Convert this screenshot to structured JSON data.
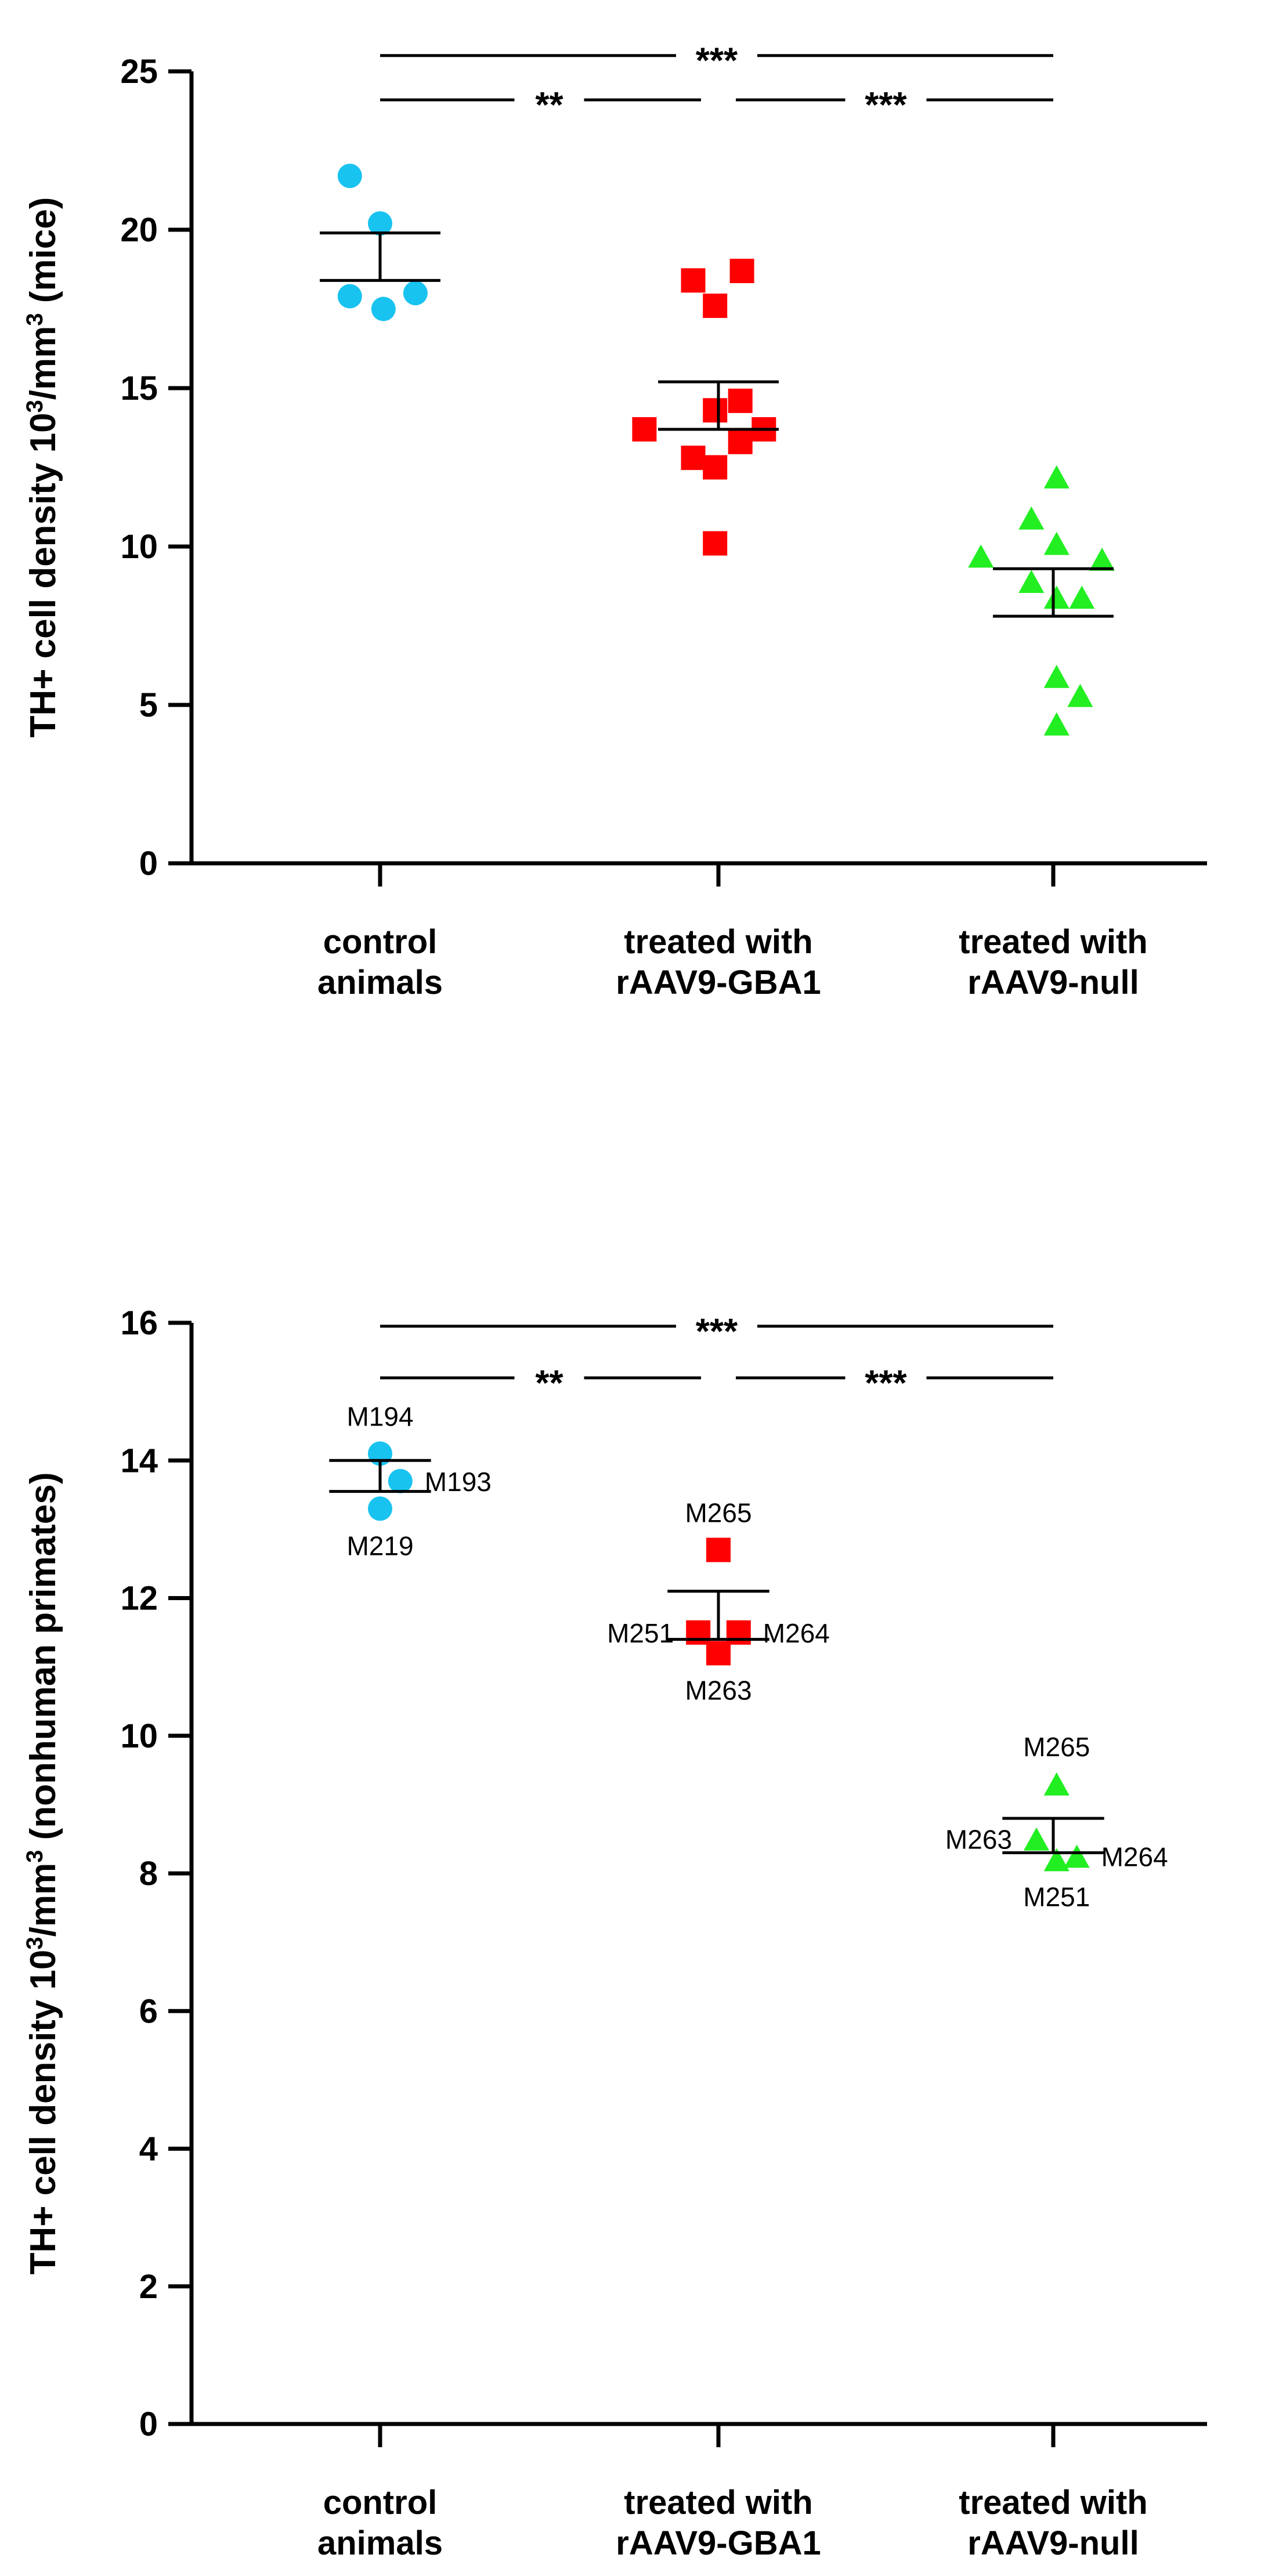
{
  "chart_data": [
    {
      "type": "scatter",
      "title": "",
      "ylabel_prefix": "TH+ cell density 10",
      "ylabel_sup1": "3",
      "ylabel_mid": "/mm",
      "ylabel_sup2": "3",
      "ylabel_suffix": " (mice)",
      "ylim": [
        0,
        25
      ],
      "yticks": [
        0,
        5,
        10,
        15,
        20,
        25
      ],
      "categories": [
        {
          "line1": "control",
          "line2": "animals"
        },
        {
          "line1": "treated with",
          "line2": "rAAV9-GBA1"
        },
        {
          "line1": "treated with",
          "line2": "rAAV9-null"
        }
      ],
      "series": [
        {
          "name": "control animals",
          "marker": "circle",
          "color": "#19c3f0",
          "points": [
            {
              "dx": -0.18,
              "y": 21.7
            },
            {
              "dx": 0.0,
              "y": 20.2
            },
            {
              "dx": -0.18,
              "y": 17.9
            },
            {
              "dx": 0.02,
              "y": 17.5
            },
            {
              "dx": 0.21,
              "y": 18.0
            }
          ],
          "mean": 19.1,
          "sem_upper": 19.9,
          "sem_lower": 18.4
        },
        {
          "name": "treated with rAAV9-GBA1",
          "marker": "square",
          "color": "#ff0000",
          "points": [
            {
              "dx": -0.15,
              "y": 18.4
            },
            {
              "dx": 0.14,
              "y": 18.7
            },
            {
              "dx": -0.02,
              "y": 17.6
            },
            {
              "dx": -0.44,
              "y": 13.7
            },
            {
              "dx": -0.02,
              "y": 14.3
            },
            {
              "dx": 0.13,
              "y": 14.6
            },
            {
              "dx": -0.15,
              "y": 12.8
            },
            {
              "dx": 0.13,
              "y": 13.3
            },
            {
              "dx": 0.27,
              "y": 13.7
            },
            {
              "dx": -0.02,
              "y": 12.5
            },
            {
              "dx": -0.02,
              "y": 10.1
            }
          ],
          "mean": 14.5,
          "sem_upper": 15.2,
          "sem_lower": 13.7
        },
        {
          "name": "treated with rAAV9-null",
          "marker": "triangle",
          "color": "#22ee22",
          "points": [
            {
              "dx": 0.02,
              "y": 12.2
            },
            {
              "dx": -0.13,
              "y": 10.9
            },
            {
              "dx": 0.02,
              "y": 10.1
            },
            {
              "dx": -0.43,
              "y": 9.7
            },
            {
              "dx": 0.29,
              "y": 9.6
            },
            {
              "dx": -0.13,
              "y": 8.9
            },
            {
              "dx": 0.17,
              "y": 8.4
            },
            {
              "dx": 0.02,
              "y": 8.4
            },
            {
              "dx": 0.02,
              "y": 5.9
            },
            {
              "dx": 0.16,
              "y": 5.3
            },
            {
              "dx": 0.02,
              "y": 4.4
            }
          ],
          "mean": 8.6,
          "sem_upper": 9.3,
          "sem_lower": 7.8
        }
      ],
      "significance": [
        {
          "from": 0,
          "to": 2,
          "y": 25.5,
          "label": "***"
        },
        {
          "from": 0,
          "to": 1,
          "y": 24.1,
          "label": "**"
        },
        {
          "from": 1,
          "to": 2,
          "y": 24.1,
          "label": "***"
        }
      ]
    },
    {
      "type": "scatter",
      "title": "",
      "ylabel_prefix": "TH+ cell density 10",
      "ylabel_sup1": "3",
      "ylabel_mid": "/mm",
      "ylabel_sup2": "3",
      "ylabel_suffix": " (nonhuman primates)",
      "ylim": [
        0,
        16
      ],
      "yticks": [
        0,
        2,
        4,
        6,
        8,
        10,
        12,
        14,
        16
      ],
      "categories": [
        {
          "line1": "control",
          "line2": "animals"
        },
        {
          "line1": "treated with",
          "line2": "rAAV9-GBA1"
        },
        {
          "line1": "treated with",
          "line2": "rAAV9-null"
        }
      ],
      "series": [
        {
          "name": "control animals",
          "marker": "circle",
          "color": "#19c3f0",
          "points": [
            {
              "dx": 0.0,
              "y": 14.1,
              "label": "M194",
              "label_pos": "above"
            },
            {
              "dx": 0.12,
              "y": 13.7,
              "label": "M193",
              "label_pos": "right"
            },
            {
              "dx": 0.0,
              "y": 13.3,
              "label": "M219",
              "label_pos": "below"
            }
          ],
          "mean": 13.8,
          "sem_upper": 14.0,
          "sem_lower": 13.55
        },
        {
          "name": "treated with rAAV9-GBA1",
          "marker": "square",
          "color": "#ff0000",
          "points": [
            {
              "dx": 0.0,
              "y": 12.7,
              "label": "M265",
              "label_pos": "above"
            },
            {
              "dx": -0.12,
              "y": 11.5,
              "label": "M251",
              "label_pos": "left"
            },
            {
              "dx": 0.12,
              "y": 11.5,
              "label": "M264",
              "label_pos": "right"
            },
            {
              "dx": 0.0,
              "y": 11.2,
              "label": "M263",
              "label_pos": "below"
            }
          ],
          "mean": 11.75,
          "sem_upper": 12.1,
          "sem_lower": 11.4
        },
        {
          "name": "treated with rAAV9-null",
          "marker": "triangle",
          "color": "#22ee22",
          "points": [
            {
              "dx": 0.02,
              "y": 9.3,
              "label": "M265",
              "label_pos": "above"
            },
            {
              "dx": -0.1,
              "y": 8.5,
              "label": "M263",
              "label_pos": "left"
            },
            {
              "dx": 0.14,
              "y": 8.25,
              "label": "M264",
              "label_pos": "right"
            },
            {
              "dx": 0.02,
              "y": 8.2,
              "label": "M251",
              "label_pos": "below"
            }
          ],
          "mean": 8.55,
          "sem_upper": 8.8,
          "sem_lower": 8.3
        }
      ],
      "significance": [
        {
          "from": 0,
          "to": 2,
          "y": 15.95,
          "label": "***"
        },
        {
          "from": 0,
          "to": 1,
          "y": 15.2,
          "label": "**"
        },
        {
          "from": 1,
          "to": 2,
          "y": 15.2,
          "label": "***"
        }
      ]
    }
  ]
}
